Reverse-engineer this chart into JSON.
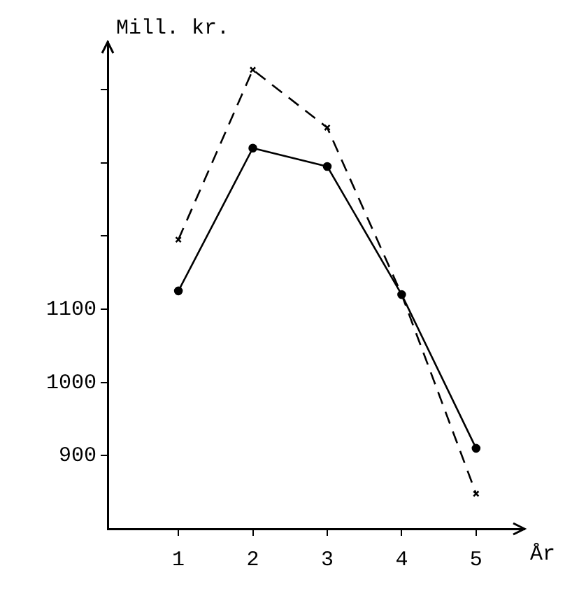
{
  "chart_data": {
    "type": "line",
    "xlabel": "År",
    "ylabel": "Mill. kr.",
    "x": [
      1,
      2,
      3,
      4,
      5
    ],
    "series": [
      {
        "color": "#000000",
        "values": [
          1125,
          1320,
          1295,
          1120,
          910
        ],
        "line_style": "solid",
        "marker": "circle"
      },
      {
        "color": "#000000",
        "values": [
          1195,
          1427,
          1348,
          1120,
          848
        ],
        "line_style": "dashed",
        "marker": "cross"
      }
    ],
    "xlim": [
      0.05,
      5.65
    ],
    "xticks": [
      1,
      2,
      3,
      4,
      5
    ],
    "ylim": [
      800,
      1465
    ],
    "yticks": [
      900,
      1000,
      1100,
      {
        "value": 1200,
        "label": null
      },
      {
        "value": 1300,
        "label": null
      },
      {
        "value": 1400,
        "label": null
      }
    ],
    "grid": false,
    "legend": false
  }
}
